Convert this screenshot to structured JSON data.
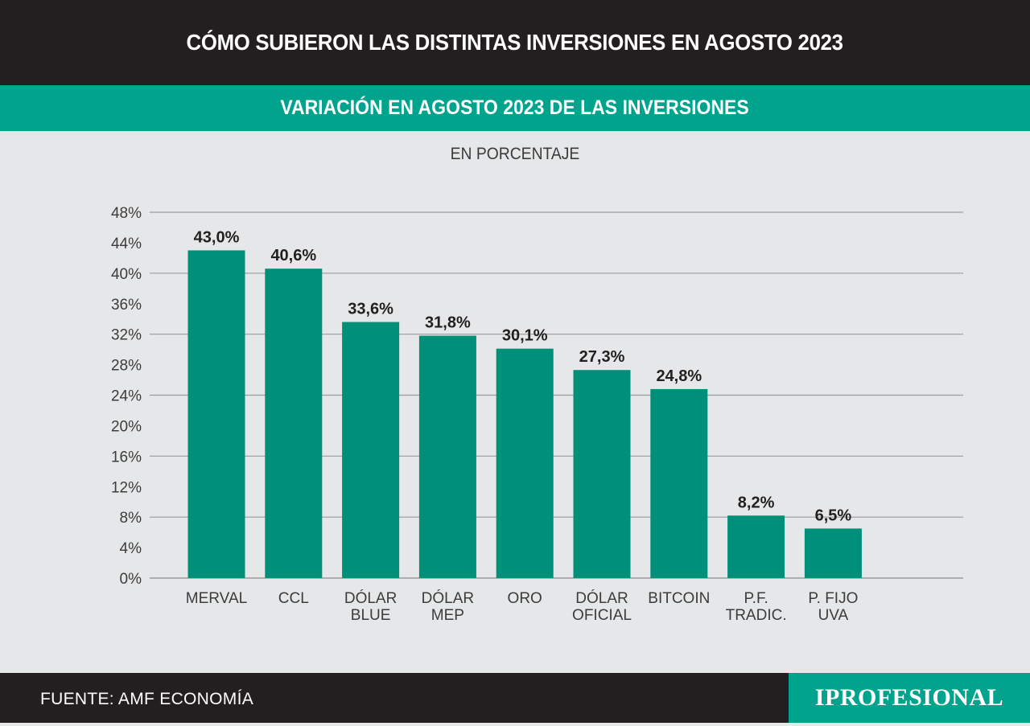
{
  "header": {
    "title": "CÓMO SUBIERON LAS DISTINTAS INVERSIONES EN AGOSTO 2023",
    "subtitle": "VARIACIÓN EN AGOSTO 2023 DE LAS INVERSIONES",
    "unit": "EN PORCENTAJE"
  },
  "footer": {
    "source": "FUENTE: AMF ECONOMÍA",
    "logo": "IPROFESIONAL"
  },
  "colors": {
    "bar": "#00907a",
    "accent": "#00a38b",
    "dark": "#231f20",
    "background": "#e6e7e8",
    "grid": "#9a9b9d"
  },
  "chart_data": {
    "type": "bar",
    "title": "VARIACIÓN EN AGOSTO 2023 DE LAS INVERSIONES",
    "subtitle": "EN PORCENTAJE",
    "categories": [
      [
        "MERVAL"
      ],
      [
        "CCL"
      ],
      [
        "DÓLAR",
        "BLUE"
      ],
      [
        "DÓLAR",
        "MEP"
      ],
      [
        "ORO"
      ],
      [
        "DÓLAR",
        "OFICIAL"
      ],
      [
        "BITCOIN"
      ],
      [
        "P.F.",
        "TRADIC."
      ],
      [
        "P. FIJO",
        "UVA"
      ]
    ],
    "values": [
      43.0,
      40.6,
      33.6,
      31.8,
      30.1,
      27.3,
      24.8,
      8.2,
      6.5
    ],
    "value_labels": [
      "43,0%",
      "40,6%",
      "33,6%",
      "31,8%",
      "30,1%",
      "27,3%",
      "24,8%",
      "8,2%",
      "6,5%"
    ],
    "yticks": [
      0,
      4,
      8,
      12,
      16,
      20,
      24,
      28,
      32,
      36,
      40,
      44,
      48
    ],
    "ytick_labels": [
      "0%",
      "4%",
      "8%",
      "12%",
      "16%",
      "20%",
      "24%",
      "28%",
      "32%",
      "36%",
      "40%",
      "44%",
      "48%"
    ],
    "ylim": [
      0,
      48
    ],
    "grid": true
  }
}
